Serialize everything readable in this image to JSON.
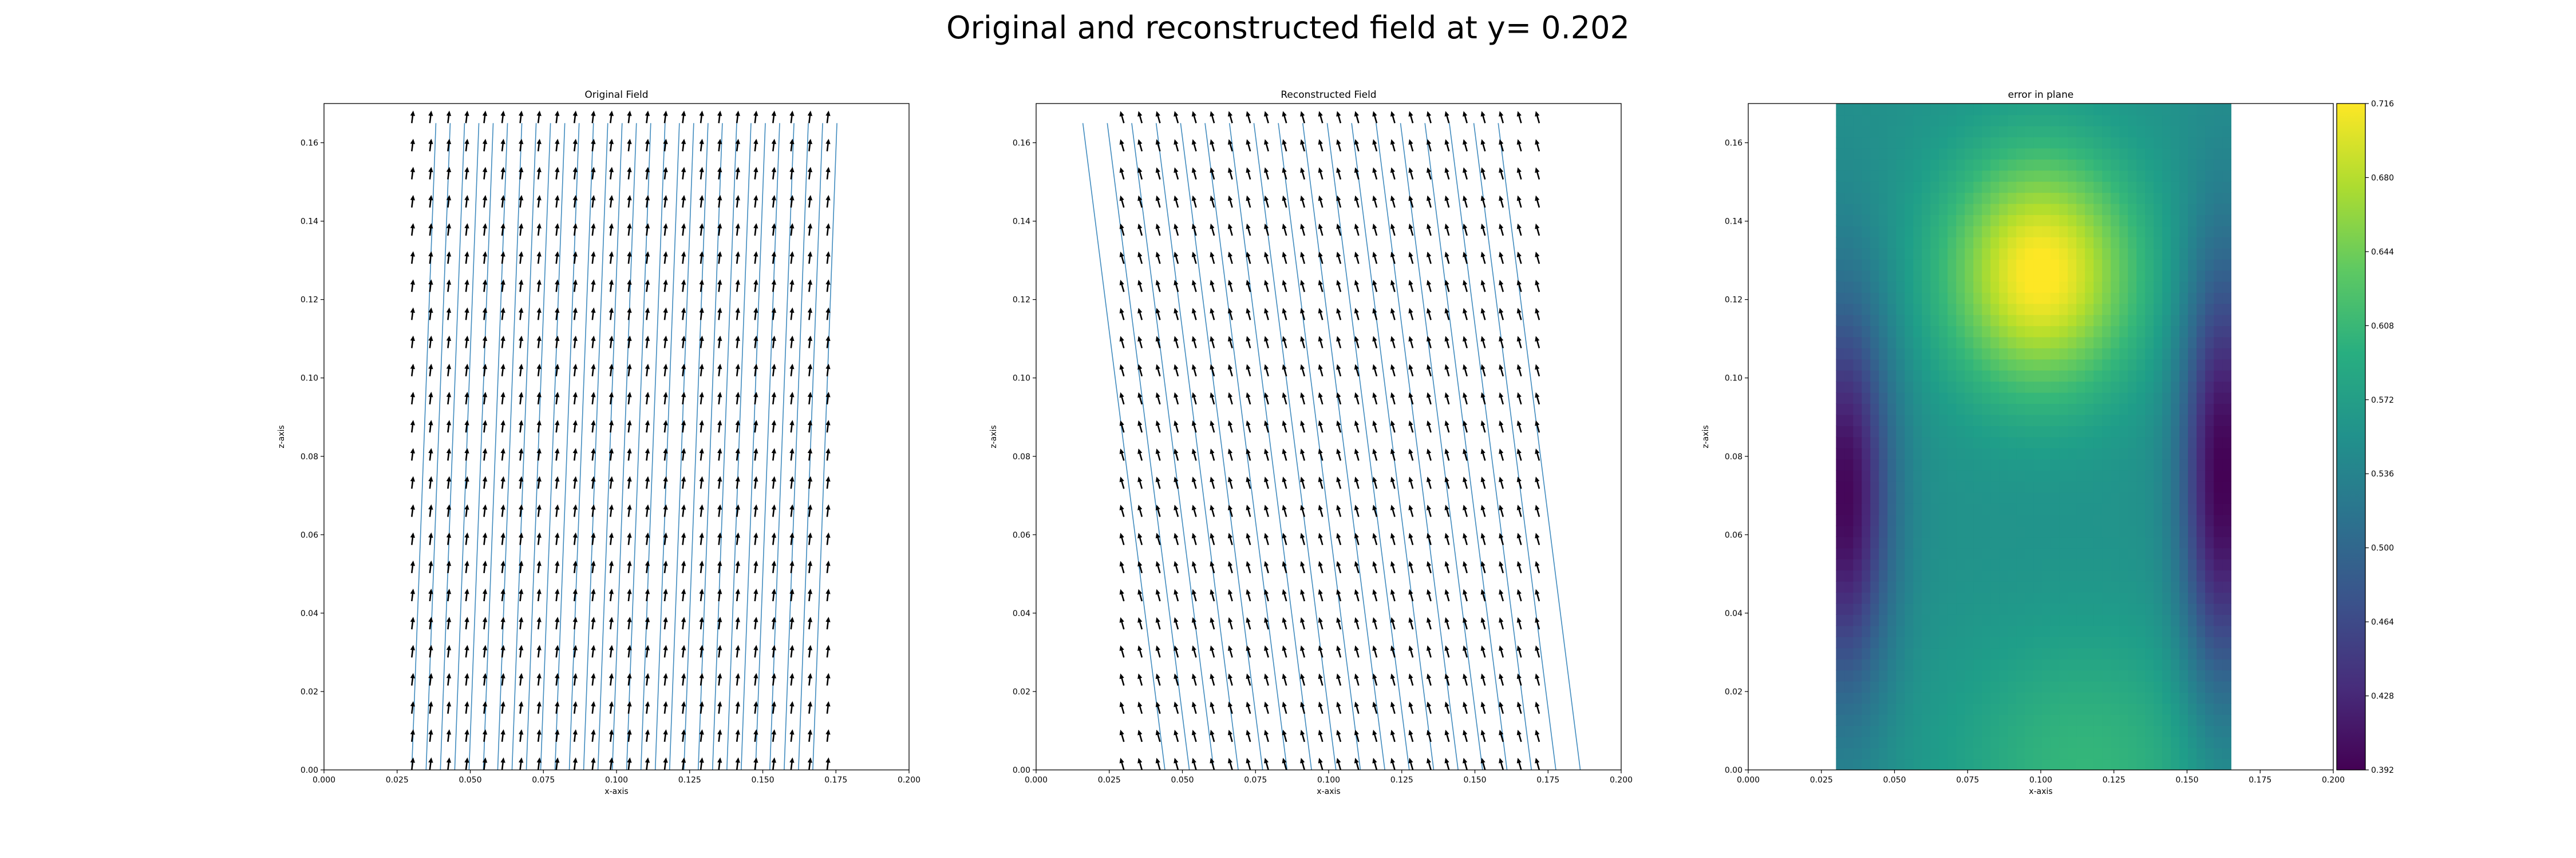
{
  "figure": {
    "suptitle": "Original and reconstructed field at y= 0.202"
  },
  "colors": {
    "streamline": "#2c7fb8",
    "arrow": "#000000"
  },
  "chart_data": [
    {
      "type": "quiver",
      "title": "Original Field",
      "xlabel": "x-axis",
      "ylabel": "z-axis",
      "xlim": [
        0,
        0.2
      ],
      "ylim": [
        0,
        0.17
      ],
      "xticks": [
        "0.000",
        "0.025",
        "0.050",
        "0.075",
        "0.100",
        "0.125",
        "0.150",
        "0.175",
        "0.200"
      ],
      "yticks": [
        "0.00",
        "0.02",
        "0.04",
        "0.06",
        "0.08",
        "0.10",
        "0.12",
        "0.14",
        "0.16"
      ],
      "grid": false,
      "field": {
        "x_range": [
          0.03,
          0.172
        ],
        "z_range": [
          0.0,
          0.165
        ],
        "nx": 24,
        "nz": 24,
        "direction": "up, slight lean right",
        "streamline_count": 30,
        "streamline_slope": 0.05
      }
    },
    {
      "type": "quiver",
      "title": "Reconstructed Field",
      "xlabel": "x-axis",
      "ylabel": "z-axis",
      "xlim": [
        0,
        0.2
      ],
      "ylim": [
        0,
        0.17
      ],
      "xticks": [
        "0.000",
        "0.025",
        "0.050",
        "0.075",
        "0.100",
        "0.125",
        "0.150",
        "0.175",
        "0.200"
      ],
      "yticks": [
        "0.00",
        "0.02",
        "0.04",
        "0.06",
        "0.08",
        "0.10",
        "0.12",
        "0.14",
        "0.16"
      ],
      "grid": false,
      "field": {
        "x_range": [
          0.03,
          0.172
        ],
        "z_range": [
          0.0,
          0.165
        ],
        "nx": 24,
        "nz": 24,
        "direction": "up, lean left",
        "streamline_count": 18,
        "streamline_slope": -0.17
      }
    },
    {
      "type": "heatmap",
      "title": "error in plane",
      "xlabel": "x-axis",
      "ylabel": "z-axis",
      "xlim": [
        0,
        0.2
      ],
      "ylim": [
        0,
        0.17
      ],
      "xticks": [
        "0.000",
        "0.025",
        "0.050",
        "0.075",
        "0.100",
        "0.125",
        "0.150",
        "0.175",
        "0.200"
      ],
      "yticks": [
        "0.00",
        "0.02",
        "0.04",
        "0.06",
        "0.08",
        "0.10",
        "0.12",
        "0.14",
        "0.16"
      ],
      "data_x_range": [
        0.03,
        0.165
      ],
      "data_z_range": [
        0,
        0.17
      ],
      "colormap": "viridis",
      "colorbar": {
        "min": 0.392,
        "max": 0.716,
        "ticks": [
          "0.392",
          "0.428",
          "0.464",
          "0.500",
          "0.536",
          "0.572",
          "0.608",
          "0.644",
          "0.680",
          "0.716"
        ]
      },
      "features": [
        {
          "kind": "maximum",
          "x": 0.1,
          "z": 0.127,
          "value": 0.716
        },
        {
          "kind": "minimum",
          "x": 0.033,
          "z": 0.07,
          "value": 0.392
        },
        {
          "kind": "minimum",
          "x": 0.162,
          "z": 0.075,
          "value": 0.392
        },
        {
          "kind": "local maximum",
          "x": 0.115,
          "z": 0.0,
          "value": 0.6
        }
      ]
    }
  ]
}
